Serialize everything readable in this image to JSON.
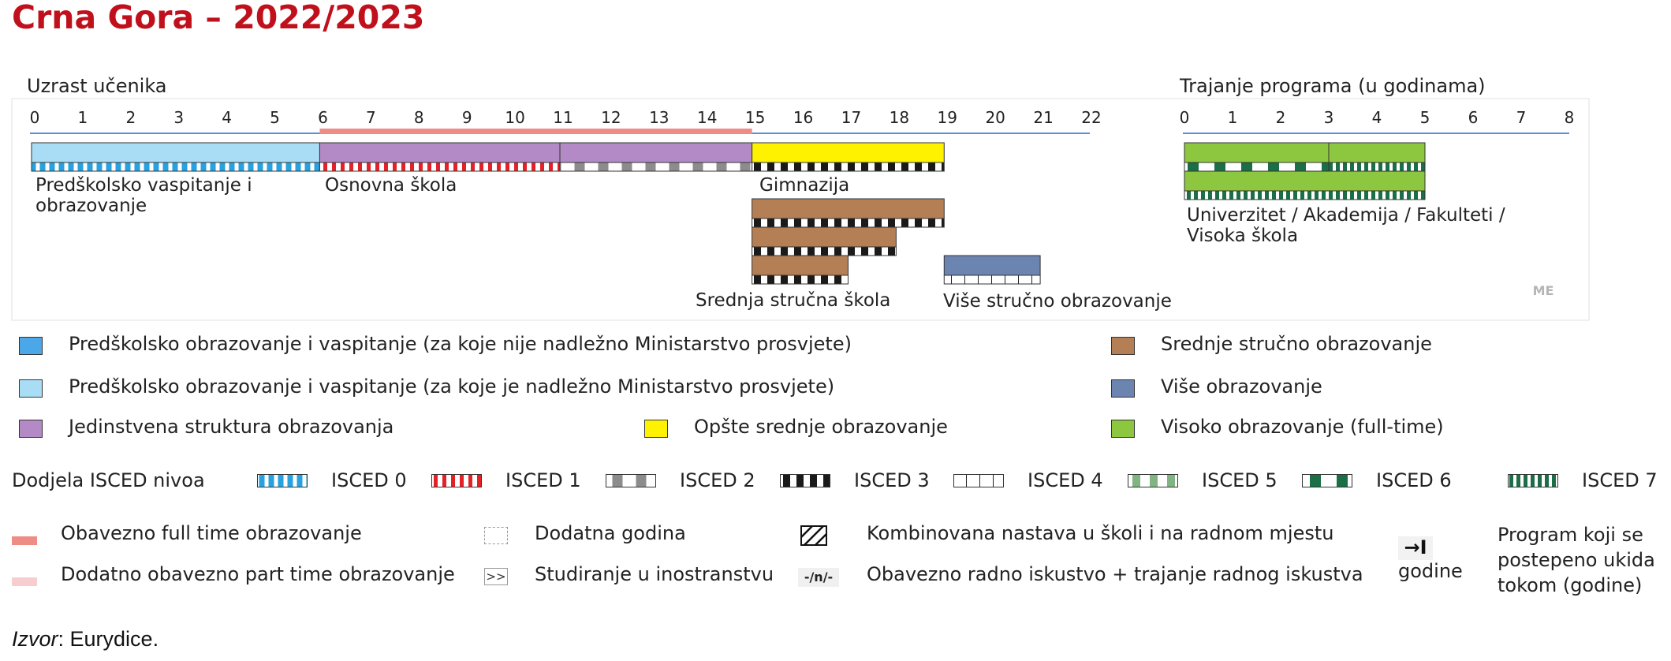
{
  "title": "Crna Gora – 2022/2023",
  "age_axis": {
    "title": "Uzrast učenika",
    "min": 0,
    "max": 22,
    "ticks": [
      "0",
      "1",
      "2",
      "3",
      "4",
      "5",
      "6",
      "7",
      "8",
      "9",
      "10",
      "11",
      "12",
      "13",
      "14",
      "15",
      "16",
      "17",
      "18",
      "19",
      "20",
      "21",
      "22"
    ],
    "compulsory_full_time": [
      6,
      15
    ]
  },
  "duration_axis": {
    "title": "Trajanje programa (u godinama)",
    "min": 0,
    "max": 8,
    "ticks": [
      "0",
      "1",
      "2",
      "3",
      "4",
      "5",
      "6",
      "7",
      "8"
    ]
  },
  "colors": {
    "preschool_dark": "#4ba7e8",
    "preschool_light": "#a9dcf5",
    "single_structure": "#b48ac6",
    "general_secondary": "#fff200",
    "vocational": "#b57f55",
    "post_secondary": "#6c84b0",
    "higher": "#8dc63f",
    "compulsory": "#ee8c86",
    "part_time": "#f8cdd0",
    "isced0": "#27a1e0",
    "isced1": "#e32127",
    "isced2": "#8c8c8c",
    "isced3": "#1a1a1a",
    "isced4": "#ffffff",
    "isced5": "#80b583",
    "isced6": "#1c6e46",
    "isced7": "#1c6e46"
  },
  "programmes": [
    {
      "id": "predskolsko",
      "row": 0,
      "start": 0,
      "end": 6,
      "fill": "preschool_light",
      "isced": "isced0"
    },
    {
      "id": "osnovna-1",
      "row": 0,
      "start": 6,
      "end": 11,
      "fill": "single_structure",
      "isced": "isced1"
    },
    {
      "id": "osnovna-2",
      "row": 0,
      "start": 11,
      "end": 15,
      "fill": "single_structure",
      "isced": "isced2"
    },
    {
      "id": "gimnazija",
      "row": 0,
      "start": 15,
      "end": 19,
      "fill": "general_secondary",
      "isced": "isced3"
    },
    {
      "id": "strucna-4",
      "row": 1,
      "start": 15,
      "end": 19,
      "fill": "vocational",
      "isced": "isced3"
    },
    {
      "id": "strucna-3",
      "row": 2,
      "start": 15,
      "end": 18,
      "fill": "vocational",
      "isced": "isced3"
    },
    {
      "id": "strucna-2",
      "row": 3,
      "start": 15,
      "end": 17,
      "fill": "vocational",
      "isced": "isced3"
    },
    {
      "id": "vise-strucno",
      "row": 3,
      "start": 19,
      "end": 21,
      "fill": "post_secondary",
      "isced": "isced4"
    }
  ],
  "higher_programmes": [
    {
      "id": "bachelor",
      "row": 0,
      "start": 0,
      "end": 3,
      "fill": "higher",
      "isced": "isced6"
    },
    {
      "id": "master",
      "row": 0,
      "start": 3,
      "end": 5,
      "fill": "higher",
      "isced": "isced7"
    },
    {
      "id": "integrated",
      "row": 1,
      "start": 0,
      "end": 5,
      "fill": "higher",
      "isced": "isced7"
    }
  ],
  "labels": {
    "predskolsko": "Predškolsko vaspitanje i\nobrazovanje",
    "osnovna": "Osnovna škola",
    "gimnazija": "Gimnazija",
    "strucna": "Srednja stručna škola",
    "vise": "Više stručno obrazovanje",
    "univerzitet": "Univerzitet / Akademija / Fakulteti /\nVisoka škola"
  },
  "country_code": "ME",
  "legend": {
    "types": [
      {
        "label": "Predškolsko obrazovanje i vaspitanje  (za koje nije nadležno Ministarstvo prosvjete)",
        "color": "preschool_dark"
      },
      {
        "label": "Predškolsko obrazovanje i vaspitanje (za koje je nadležno Ministarstvo prosvjete)",
        "color": "preschool_light"
      },
      {
        "label": "Jedinstvena struktura obrazovanja",
        "color": "single_structure"
      },
      {
        "label": "Opšte srednje obrazovanje",
        "color": "general_secondary"
      },
      {
        "label": "Srednje stručno obrazovanje",
        "color": "vocational"
      },
      {
        "label": "Više obrazovanje",
        "color": "post_secondary"
      },
      {
        "label": "Visoko obrazovanje (full-time)",
        "color": "higher"
      }
    ],
    "isced_title": "Dodjela  ISCED nivoa",
    "isced": [
      {
        "label": "ISCED 0",
        "key": "isced0"
      },
      {
        "label": "ISCED 1",
        "key": "isced1"
      },
      {
        "label": "ISCED 2",
        "key": "isced2"
      },
      {
        "label": "ISCED 3",
        "key": "isced3"
      },
      {
        "label": "ISCED 4",
        "key": "isced4"
      },
      {
        "label": "ISCED 5",
        "key": "isced5"
      },
      {
        "label": "ISCED 6",
        "key": "isced6"
      },
      {
        "label": "ISCED 7",
        "key": "isced7"
      }
    ],
    "other": {
      "compulsory": "Obavezno  full time obrazovanje",
      "part_time": "Dodatno obavezno part time obrazovanje",
      "extra_year": "Dodatna godina",
      "abroad": "Studiranje u inostranstvu",
      "abroad_symbol": ">>",
      "combined": "Kombinovana nastava u školi i na radnom mjestu",
      "work_experience": "Obavezno radno iskustvo + trajanje radnog iskustva",
      "work_symbol": "-/n/-",
      "phasing_symbol": "→I",
      "phasing_unit": "godine",
      "phasing_label": "Program koji se\npostepeno ukida\ntokom (godine)"
    }
  },
  "source": {
    "prefix": "Izvor",
    "text": ": Eurydice."
  }
}
